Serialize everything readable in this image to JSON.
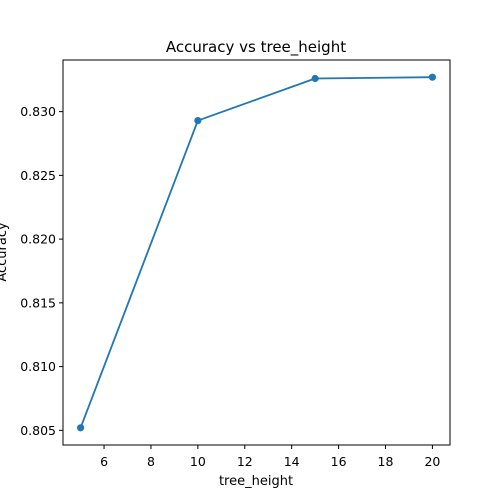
{
  "chart_data": {
    "type": "line",
    "title": "Accuracy vs tree_height",
    "xlabel": "tree_height",
    "ylabel": "Accuracy",
    "xlim": [
      4.25,
      20.75
    ],
    "ylim": [
      0.80385,
      0.83405
    ],
    "xticks": [
      6,
      8,
      10,
      12,
      14,
      16,
      18,
      20
    ],
    "xtick_labels": [
      "6",
      "8",
      "10",
      "12",
      "14",
      "16",
      "18",
      "20"
    ],
    "yticks": [
      0.805,
      0.81,
      0.815,
      0.82,
      0.825,
      0.83
    ],
    "ytick_labels": [
      "0.805",
      "0.810",
      "0.815",
      "0.820",
      "0.825",
      "0.830"
    ],
    "grid": false,
    "series": [
      {
        "color": "#1f77b4",
        "marker": "circle",
        "points": [
          {
            "x": 5,
            "y": 0.8052
          },
          {
            "x": 10,
            "y": 0.8293
          },
          {
            "x": 15,
            "y": 0.8326
          },
          {
            "x": 20,
            "y": 0.8327
          }
        ]
      }
    ]
  }
}
